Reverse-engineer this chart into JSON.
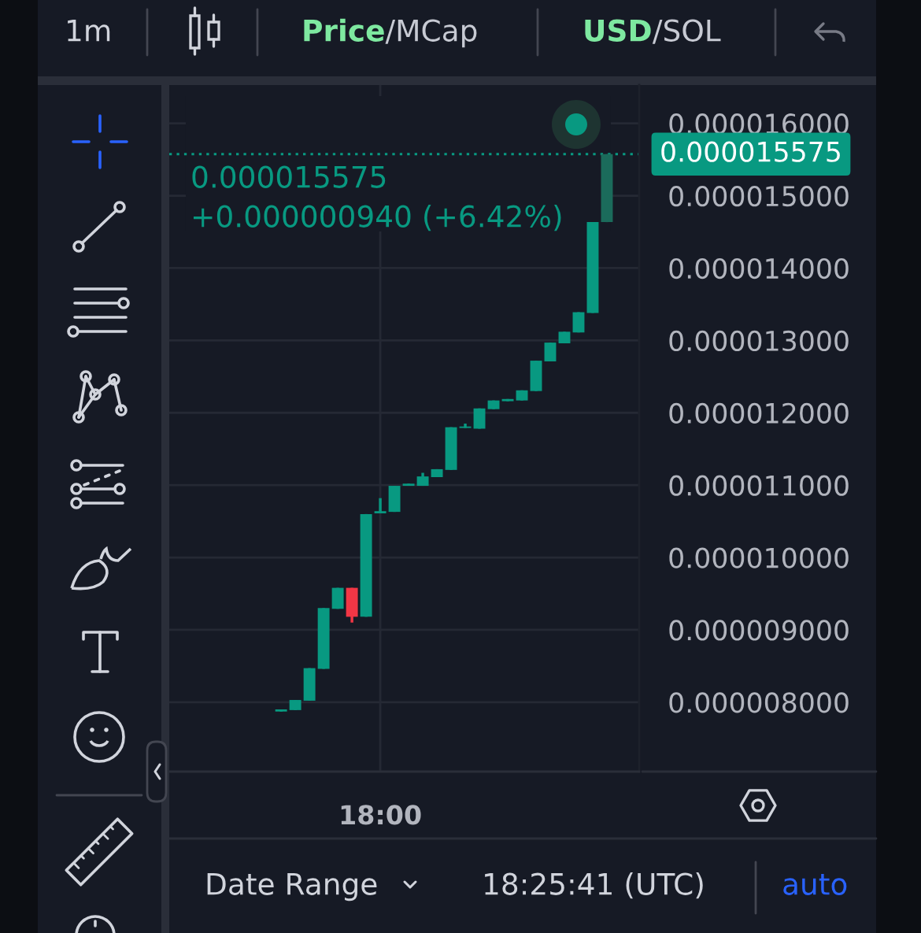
{
  "chart_data": {
    "type": "candlestick",
    "categories": [
      null,
      null,
      null,
      null,
      null,
      null,
      null,
      "18:00",
      null,
      null,
      null,
      null,
      null,
      null,
      null,
      null,
      null,
      null,
      null,
      null,
      null,
      null,
      null,
      null
    ],
    "ohlc": [
      [
        7.87e-06,
        7.9e-06,
        7.87e-06,
        7.9e-06
      ],
      [
        7.89e-06,
        8.03e-06,
        7.89e-06,
        8.03e-06
      ],
      [
        8.02e-06,
        8.47e-06,
        8.02e-06,
        8.47e-06
      ],
      [
        8.46e-06,
        9.3e-06,
        8.46e-06,
        9.3e-06
      ],
      [
        9.29e-06,
        9.58e-06,
        9.29e-06,
        9.58e-06
      ],
      [
        9.58e-06,
        9.58e-06,
        9.1e-06,
        9.18e-06
      ],
      [
        9.18e-06,
        1.06e-05,
        9.18e-06,
        1.06e-05
      ],
      [
        1.061e-05,
        1.082e-05,
        1.061e-05,
        1.064e-05
      ],
      [
        1.063e-05,
        1.099e-05,
        1.063e-05,
        1.099e-05
      ],
      [
        1.099e-05,
        1.102e-05,
        1.099e-05,
        1.102e-05
      ],
      [
        1.099e-05,
        1.117e-05,
        1.099e-05,
        1.112e-05
      ],
      [
        1.111e-05,
        1.122e-05,
        1.111e-05,
        1.122e-05
      ],
      [
        1.121e-05,
        1.18e-05,
        1.121e-05,
        1.18e-05
      ],
      [
        1.179e-05,
        1.185e-05,
        1.179e-05,
        1.181e-05
      ],
      [
        1.178e-05,
        1.206e-05,
        1.178e-05,
        1.206e-05
      ],
      [
        1.205e-05,
        1.217e-05,
        1.205e-05,
        1.217e-05
      ],
      [
        1.216e-05,
        1.219e-05,
        1.216e-05,
        1.219e-05
      ],
      [
        1.217e-05,
        1.231e-05,
        1.217e-05,
        1.231e-05
      ],
      [
        1.23e-05,
        1.272e-05,
        1.23e-05,
        1.272e-05
      ],
      [
        1.271e-05,
        1.297e-05,
        1.271e-05,
        1.297e-05
      ],
      [
        1.296e-05,
        1.312e-05,
        1.296e-05,
        1.312e-05
      ],
      [
        1.311e-05,
        1.339e-05,
        1.311e-05,
        1.339e-05
      ],
      [
        1.338e-05,
        1.4635e-05,
        1.338e-05,
        1.4635e-05
      ],
      [
        1.4635e-05,
        1.5575e-05,
        1.4635e-05,
        1.5575e-05
      ]
    ],
    "colors": [
      "#089981",
      "#089981",
      "#089981",
      "#089981",
      "#089981",
      "#f23645",
      "#089981",
      "#089981",
      "#089981",
      "#089981",
      "#089981",
      "#089981",
      "#089981",
      "#089981",
      "#089981",
      "#089981",
      "#089981",
      "#089981",
      "#089981",
      "#089981",
      "#089981",
      "#089981",
      "#089981",
      "#1b6b5b"
    ],
    "ylim": [
      7.04e-06,
      1.653e-05
    ],
    "yticks": [
      {
        "value": 8e-06,
        "label": "0.000008000"
      },
      {
        "value": 9e-06,
        "label": "0.000009000"
      },
      {
        "value": 1e-05,
        "label": "0.000010000"
      },
      {
        "value": 1.1e-05,
        "label": "0.000011000"
      },
      {
        "value": 1.2e-05,
        "label": "0.000012000"
      },
      {
        "value": 1.3e-05,
        "label": "0.000013000"
      },
      {
        "value": 1.4e-05,
        "label": "0.000014000"
      },
      {
        "value": 1.5e-05,
        "label": "0.000015000"
      },
      {
        "value": 1.6e-05,
        "label": "0.000016000"
      }
    ],
    "ref_lines": [
      {
        "axis": "y",
        "value": 1.5575e-05,
        "label": "0.000015575",
        "color": "#089981",
        "line_style": "dotted"
      }
    ],
    "grid": true,
    "annotations": [
      "0.000015575",
      "+0.000000940 (+6.42%)",
      "1m",
      "Price",
      "/MCap",
      "USD",
      "/SOL",
      "Date Range",
      "18:25:41 (UTC)",
      "auto"
    ]
  }
}
